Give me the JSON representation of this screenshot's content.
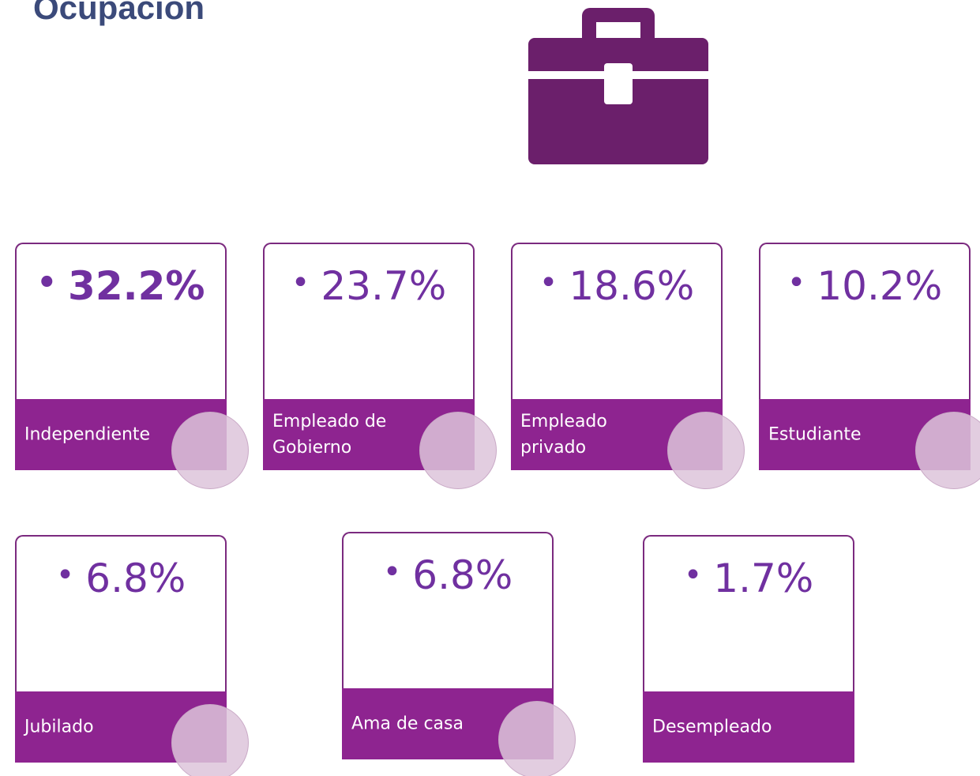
{
  "header": {
    "title": "Ocupación"
  },
  "cards": [
    {
      "value": "32.2%",
      "label": "Independiente"
    },
    {
      "value": "23.7%",
      "label": "Empleado de Gobierno"
    },
    {
      "value": "18.6%",
      "label": "Empleado privado"
    },
    {
      "value": "10.2%",
      "label": "Estudiante"
    },
    {
      "value": "6.8%",
      "label": "Jubilado"
    },
    {
      "value": "6.8%",
      "label": "Ama de casa"
    },
    {
      "value": "1.7%",
      "label": "Desempleado"
    }
  ]
}
